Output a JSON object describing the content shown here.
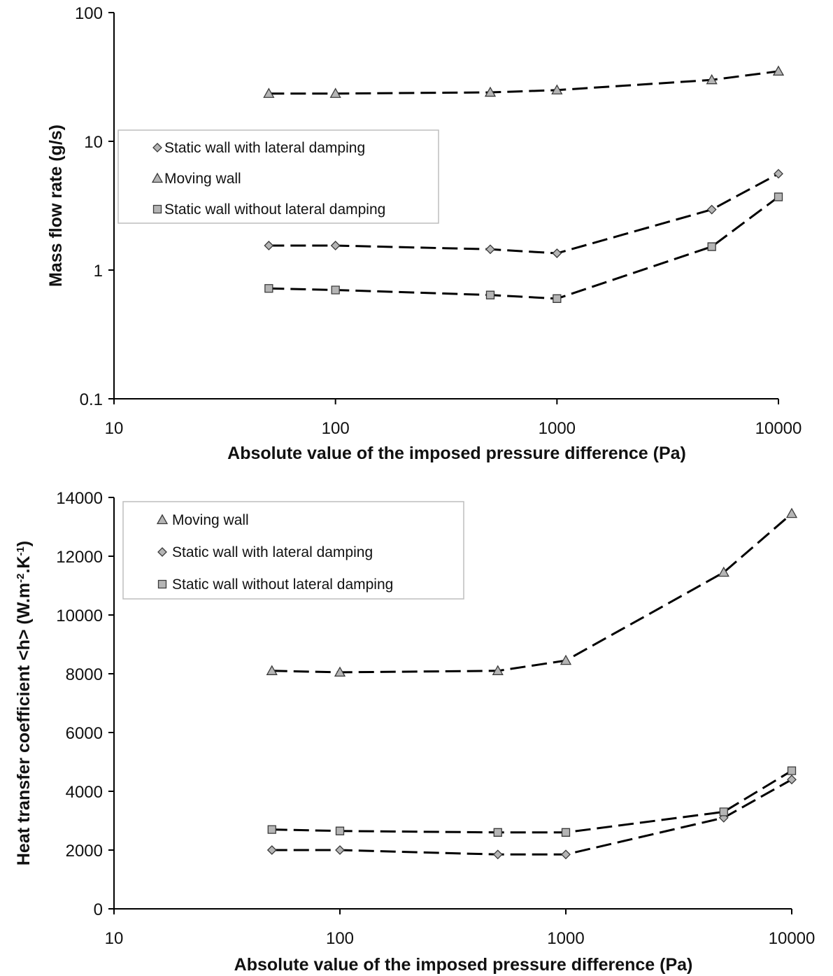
{
  "chart_data": [
    {
      "type": "line",
      "xscale": "log",
      "yscale": "log",
      "xlim": [
        10,
        10000
      ],
      "ylim": [
        0.1,
        100
      ],
      "xlabel": "Absolute value of the imposed pressure difference (Pa)",
      "ylabel": "Mass flow rate (g/s)",
      "x_ticks": [
        "10",
        "100",
        "1000",
        "10000"
      ],
      "y_ticks": [
        "0.1",
        "1",
        "10",
        "100"
      ],
      "legend_position": "left, mid-height",
      "legend_order": [
        0,
        1,
        2
      ],
      "series": [
        {
          "name": "Static wall with lateral damping",
          "marker": "diamond",
          "x": [
            50,
            100,
            500,
            1000,
            5000,
            10000
          ],
          "y": [
            1.55,
            1.55,
            1.45,
            1.35,
            2.95,
            5.6
          ]
        },
        {
          "name": "Moving wall",
          "marker": "triangle",
          "x": [
            50,
            100,
            500,
            1000,
            5000,
            10000
          ],
          "y": [
            23.5,
            23.5,
            24,
            25,
            30,
            35
          ]
        },
        {
          "name": "Static wall without lateral damping",
          "marker": "square",
          "x": [
            50,
            100,
            500,
            1000,
            5000,
            10000
          ],
          "y": [
            0.72,
            0.7,
            0.64,
            0.6,
            1.52,
            3.7
          ]
        }
      ]
    },
    {
      "type": "line",
      "xscale": "log",
      "yscale": "linear",
      "xlim": [
        10,
        10000
      ],
      "ylim": [
        0,
        14000
      ],
      "xlabel": "Absolute value of the imposed pressure difference (Pa)",
      "ylabel_parts": [
        "Heat transfer coefficient <h> (W.m",
        "-2",
        ".K",
        "-1",
        ")"
      ],
      "x_ticks": [
        "10",
        "100",
        "1000",
        "10000"
      ],
      "y_ticks": [
        "0",
        "2000",
        "4000",
        "6000",
        "8000",
        "10000",
        "12000",
        "14000"
      ],
      "legend_position": "top-left",
      "legend_order": [
        1,
        0,
        2
      ],
      "series": [
        {
          "name": "Static wall with lateral damping",
          "marker": "diamond",
          "x": [
            50,
            100,
            500,
            1000,
            5000,
            10000
          ],
          "y": [
            2000,
            2000,
            1850,
            1850,
            3100,
            4400
          ]
        },
        {
          "name": "Moving wall",
          "marker": "triangle",
          "x": [
            50,
            100,
            500,
            1000,
            5000,
            10000
          ],
          "y": [
            8100,
            8050,
            8100,
            8450,
            11450,
            13450
          ]
        },
        {
          "name": "Static wall without lateral damping",
          "marker": "square",
          "x": [
            50,
            100,
            500,
            1000,
            5000,
            10000
          ],
          "y": [
            2700,
            2650,
            2600,
            2600,
            3300,
            4700
          ]
        }
      ]
    }
  ]
}
